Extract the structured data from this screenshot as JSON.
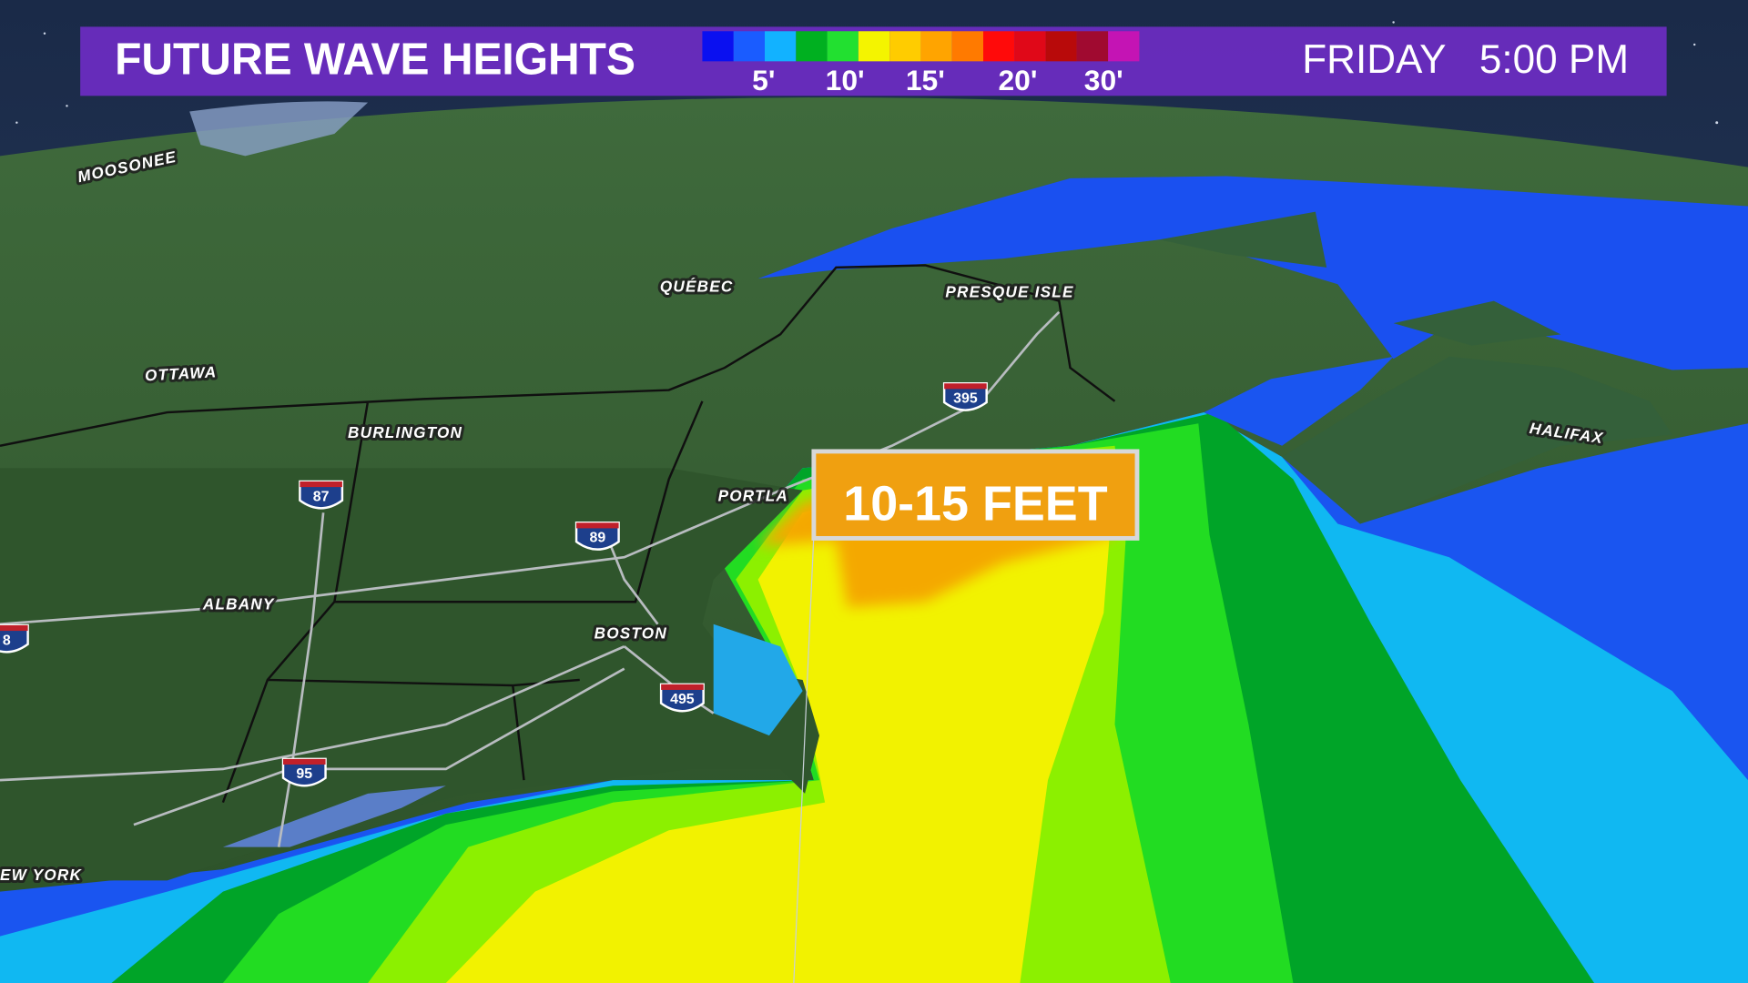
{
  "header": {
    "title": "FUTURE WAVE HEIGHTS",
    "day": "FRIDAY",
    "time": "5:00 PM"
  },
  "legend": {
    "colors": [
      "#0a10f0",
      "#1a5cff",
      "#12b2ff",
      "#00b020",
      "#22e030",
      "#f4f400",
      "#ffcc00",
      "#ffa400",
      "#ff7a00",
      "#ff0a0a",
      "#e00818",
      "#b80a0a",
      "#a00a30",
      "#c414b4"
    ],
    "labels": [
      "5'",
      "10'",
      "15'",
      "20'",
      "30'"
    ]
  },
  "callout": {
    "text": "10-15 FEET"
  },
  "cities": [
    "MOOSONEE",
    "QUÉBEC",
    "PRESQUE ISLE",
    "OTTAWA",
    "BURLINGTON",
    "PORTLA",
    "ALBANY",
    "BOSTON",
    "HALIFAX",
    "EW YORK"
  ],
  "highways": [
    "87",
    "89",
    "395",
    "495",
    "95",
    "8"
  ]
}
